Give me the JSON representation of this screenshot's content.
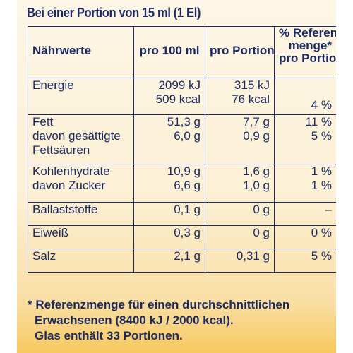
{
  "header": {
    "title": "Bei einer Portion von 15 ml (1 El)"
  },
  "table": {
    "head": {
      "col1": "Nährwerte",
      "col2": "pro 100 ml",
      "col3": "pro Portion",
      "col4": [
        "% Referenz-",
        "menge*",
        "pro Portion"
      ]
    },
    "rows": [
      {
        "label": [
          "Energie"
        ],
        "per100": [
          "2099 kJ",
          "509 kcal"
        ],
        "portion": [
          "315 kJ",
          "76 kcal"
        ],
        "ref": [
          "4 %"
        ]
      },
      {
        "label": [
          "Fett",
          "davon gesättigte",
          "Fettsäuren"
        ],
        "per100": [
          "51,3 g",
          "6,0 g"
        ],
        "portion": [
          "7,7 g",
          "0,9 g"
        ],
        "ref": [
          "11 %",
          "5 %"
        ]
      },
      {
        "label": [
          "Kohlenhydrate",
          "davon Zucker"
        ],
        "per100": [
          "10,9 g",
          "6,6 g"
        ],
        "portion": [
          "1,6 g",
          "1,0 g"
        ],
        "ref": [
          "1 %",
          "1 %"
        ]
      },
      {
        "label": [
          "Ballaststoffe"
        ],
        "per100": [
          "0,1 g"
        ],
        "portion": [
          "0 g"
        ],
        "ref": [
          "–"
        ]
      },
      {
        "label": [
          "Eiweiß"
        ],
        "per100": [
          "0,3 g"
        ],
        "portion": [
          "0 g"
        ],
        "ref": [
          "0 %"
        ]
      },
      {
        "label": [
          "Salz"
        ],
        "per100": [
          "2,1 g"
        ],
        "portion": [
          "0,31 g"
        ],
        "ref": [
          "5 %"
        ]
      }
    ]
  },
  "footnote": {
    "line1": "* Referenzmenge für einen durchschnittlichen",
    "line2": "Erwachsenen (8400 kJ / 2000 kcal).",
    "line3": "Glas enthält 33 Portionen."
  },
  "colors": {
    "text": "#1c2a63",
    "background": "#fcf0d5",
    "accent": "#f7c95f"
  }
}
